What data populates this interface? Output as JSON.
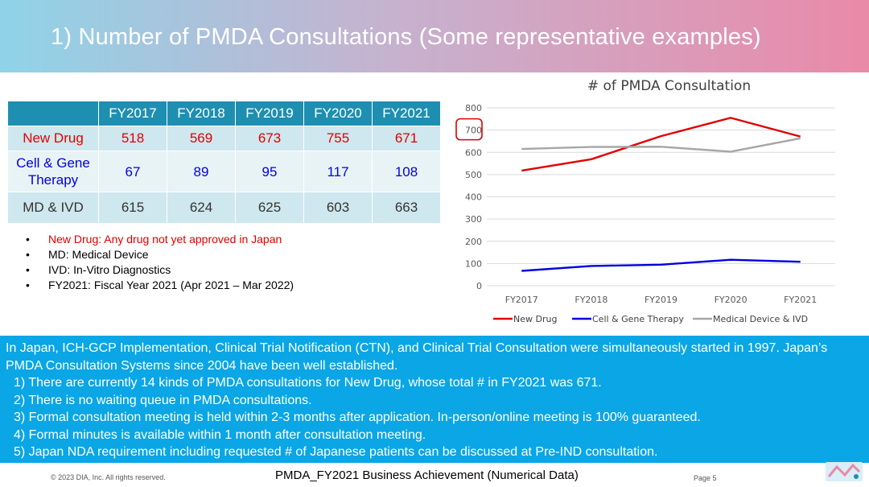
{
  "header": {
    "title": "1) Number of PMDA Consultations (Some representative examples)"
  },
  "table": {
    "columns": [
      "FY2017",
      "FY2018",
      "FY2019",
      "FY2020",
      "FY2021"
    ],
    "rows": [
      {
        "label": "New Drug",
        "values": [
          "518",
          "569",
          "673",
          "755",
          "671"
        ]
      },
      {
        "label_line1": "Cell & Gene",
        "label_line2": "Therapy",
        "values": [
          "67",
          "89",
          "95",
          "117",
          "108"
        ]
      },
      {
        "label": "MD & IVD",
        "values": [
          "615",
          "624",
          "625",
          "603",
          "663"
        ]
      }
    ]
  },
  "notes": [
    "New Drug: Any drug not yet approved in Japan",
    "MD: Medical Device",
    "IVD: In-Vitro Diagnostics",
    "FY2021: Fiscal Year 2021 (Apr 2021 – Mar 2022)"
  ],
  "chart_data": {
    "type": "line",
    "title": "# of PMDA Consultation",
    "categories": [
      "FY2017",
      "FY2018",
      "FY2019",
      "FY2020",
      "FY2021"
    ],
    "series": [
      {
        "name": "New Drug",
        "color": "#e00000",
        "values": [
          518,
          569,
          673,
          755,
          671
        ]
      },
      {
        "name": "Cell & Gene Therapy",
        "color": "#0000e0",
        "values": [
          67,
          89,
          95,
          117,
          108
        ]
      },
      {
        "name": "Medical Device & IVD",
        "color": "#a6a6a6",
        "values": [
          615,
          624,
          625,
          603,
          663
        ]
      }
    ],
    "y_ticks": [
      "0",
      "100",
      "200",
      "300",
      "400",
      "500",
      "600",
      "700",
      "800"
    ],
    "ylim": [
      0,
      800
    ],
    "grid": true,
    "legend": "bottom",
    "highlight_tick": "700"
  },
  "bottom": {
    "intro": "In Japan, ICH-GCP Implementation, Clinical Trial Notification (CTN), and Clinical Trial Consultation were simultaneously started in 1997.  Japan’s PMDA Consultation Systems since 2004 have been well established.",
    "points": [
      "1) There are currently 14 kinds of PMDA consultations for New Drug, whose total # in FY2021 was 671.",
      "2) There is no waiting queue in PMDA consultations.",
      "3) Formal consultation meeting is held within 2-3 months after application.  In-person/online meeting is 100% guaranteed.",
      "4) Formal minutes is available within 1 month after consultation meeting.",
      "5) Japan NDA requirement including requested # of Japanese patients can be discussed at Pre-IND consultation."
    ]
  },
  "footer": {
    "copyright": "© 2023 DIA, Inc. All rights reserved.",
    "title": "PMDA_FY2021 Business Achievement (Numerical Data)",
    "page": "Page 5"
  }
}
